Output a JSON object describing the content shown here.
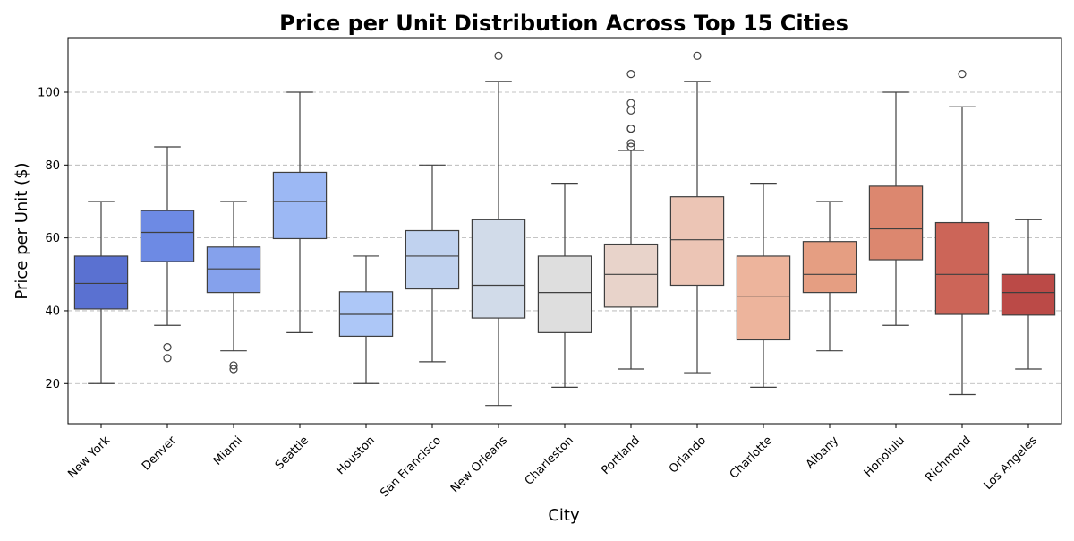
{
  "chart_data": {
    "type": "box",
    "title": "Price per Unit Distribution Across Top 15 Cities",
    "xlabel": "City",
    "ylabel": "Price per Unit ($)",
    "ylim": [
      9,
      115
    ],
    "yticks": [
      20,
      40,
      60,
      80,
      100
    ],
    "grid": "y-dashed",
    "categories": [
      "New York",
      "Denver",
      "Miami",
      "Seattle",
      "Houston",
      "San Francisco",
      "New Orleans",
      "Charleston",
      "Portland",
      "Orlando",
      "Charlotte",
      "Albany",
      "Honolulu",
      "Richmond",
      "Los Angeles"
    ],
    "colors": [
      "#5a71d1",
      "#6d8ae4",
      "#85a1ec",
      "#9cb8f4",
      "#adc7f7",
      "#c0d2ef",
      "#d1dbe9",
      "#dedede",
      "#e8d3ca",
      "#ecc5b5",
      "#edb49c",
      "#e59e82",
      "#dc876f",
      "#cc6558",
      "#bb4a47"
    ],
    "boxes": [
      {
        "whisker_low": 20,
        "q1": 40.5,
        "median": 47.5,
        "q3": 55,
        "whisker_high": 70,
        "outliers": []
      },
      {
        "whisker_low": 36,
        "q1": 53.5,
        "median": 61.5,
        "q3": 67.5,
        "whisker_high": 85,
        "outliers": [
          30,
          27
        ]
      },
      {
        "whisker_low": 29,
        "q1": 45,
        "median": 51.5,
        "q3": 57.5,
        "whisker_high": 70,
        "outliers": [
          25,
          24
        ]
      },
      {
        "whisker_low": 34,
        "q1": 59.8,
        "median": 70,
        "q3": 78,
        "whisker_high": 100,
        "outliers": []
      },
      {
        "whisker_low": 20,
        "q1": 33,
        "median": 39,
        "q3": 45.2,
        "whisker_high": 55,
        "outliers": []
      },
      {
        "whisker_low": 26,
        "q1": 46,
        "median": 55,
        "q3": 62,
        "whisker_high": 80,
        "outliers": []
      },
      {
        "whisker_low": 14,
        "q1": 38,
        "median": 47,
        "q3": 65,
        "whisker_high": 103,
        "outliers": [
          110
        ]
      },
      {
        "whisker_low": 19,
        "q1": 34,
        "median": 45,
        "q3": 55,
        "whisker_high": 75,
        "outliers": []
      },
      {
        "whisker_low": 24,
        "q1": 41,
        "median": 50,
        "q3": 58.3,
        "whisker_high": 84,
        "outliers": [
          105,
          97,
          95,
          90,
          90,
          86,
          85
        ]
      },
      {
        "whisker_low": 23,
        "q1": 47,
        "median": 59.5,
        "q3": 71.3,
        "whisker_high": 103,
        "outliers": [
          110
        ]
      },
      {
        "whisker_low": 19,
        "q1": 32,
        "median": 44,
        "q3": 55,
        "whisker_high": 75,
        "outliers": []
      },
      {
        "whisker_low": 29,
        "q1": 45,
        "median": 50,
        "q3": 59,
        "whisker_high": 70,
        "outliers": []
      },
      {
        "whisker_low": 36,
        "q1": 54,
        "median": 62.5,
        "q3": 74.2,
        "whisker_high": 100,
        "outliers": []
      },
      {
        "whisker_low": 17,
        "q1": 39,
        "median": 50,
        "q3": 64.2,
        "whisker_high": 96,
        "outliers": [
          105
        ]
      },
      {
        "whisker_low": 24,
        "q1": 38.8,
        "median": 45,
        "q3": 50,
        "whisker_high": 65,
        "outliers": []
      }
    ]
  }
}
